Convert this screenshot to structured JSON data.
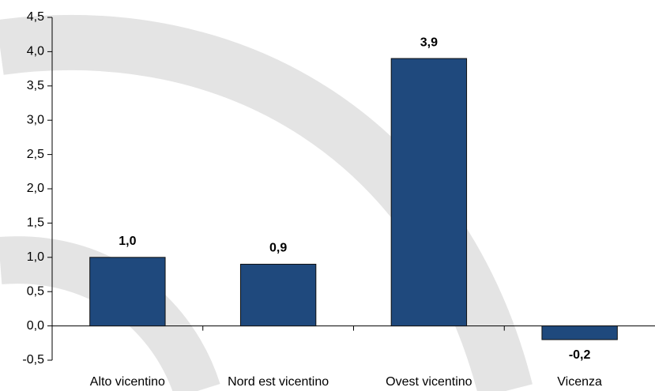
{
  "chart_data": {
    "type": "bar",
    "categories": [
      "Alto vicentino",
      "Nord est vicentino",
      "Ovest vicentino",
      "Vicenza"
    ],
    "values": [
      1.0,
      0.9,
      3.9,
      -0.2
    ],
    "value_labels": [
      "1,0",
      "0,9",
      "3,9",
      "-0,2"
    ],
    "color": "#1f497d",
    "ylim": [
      -0.5,
      4.5
    ],
    "yticks": [
      {
        "value": -0.5,
        "label": "-0,5"
      },
      {
        "value": 0,
        "label": "0,0"
      },
      {
        "value": 0.5,
        "label": "0,5"
      },
      {
        "value": 1,
        "label": "1,0"
      },
      {
        "value": 1.5,
        "label": "1,5"
      },
      {
        "value": 2,
        "label": "2,0"
      },
      {
        "value": 2.5,
        "label": "2,5"
      },
      {
        "value": 3,
        "label": "3,0"
      },
      {
        "value": 3.5,
        "label": "3,5"
      },
      {
        "value": 4,
        "label": "4,0"
      },
      {
        "value": 4.5,
        "label": "4,5"
      }
    ],
    "grid": false
  }
}
